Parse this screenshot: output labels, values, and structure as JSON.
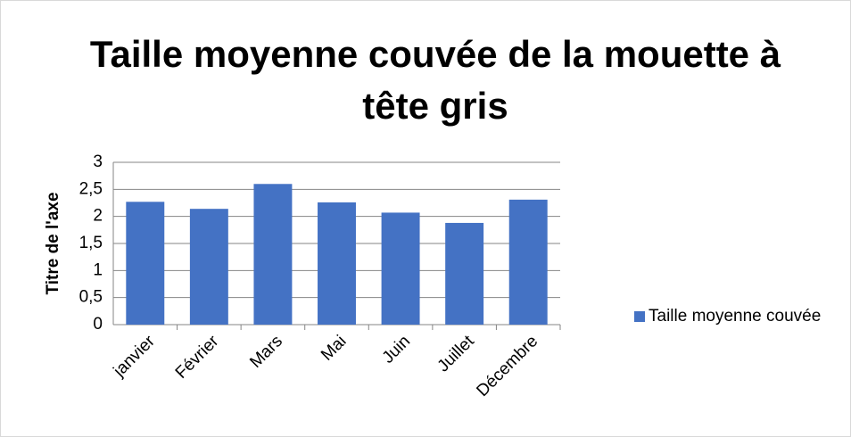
{
  "chart_data": {
    "type": "bar",
    "title": "Taille moyenne couvée de la mouette à tête gris",
    "y_label": "Titre de l'axe",
    "categories": [
      "janvier",
      "Février",
      "Mars",
      "Mai",
      "Juin",
      "Juillet",
      "Décembre"
    ],
    "series": [
      {
        "name": "Taille moyenne couvée",
        "color": "#4472c4",
        "values": [
          2.27,
          2.14,
          2.6,
          2.26,
          2.07,
          1.88,
          2.31
        ]
      }
    ],
    "ylim": [
      0,
      3
    ],
    "yticks": [
      0,
      {
        "value": 0.5,
        "label": "0,5"
      },
      1,
      {
        "value": 1.5,
        "label": "1,5"
      },
      2,
      {
        "value": 2.5,
        "label": "2,5"
      },
      3
    ],
    "grid": true,
    "legend": "right"
  }
}
